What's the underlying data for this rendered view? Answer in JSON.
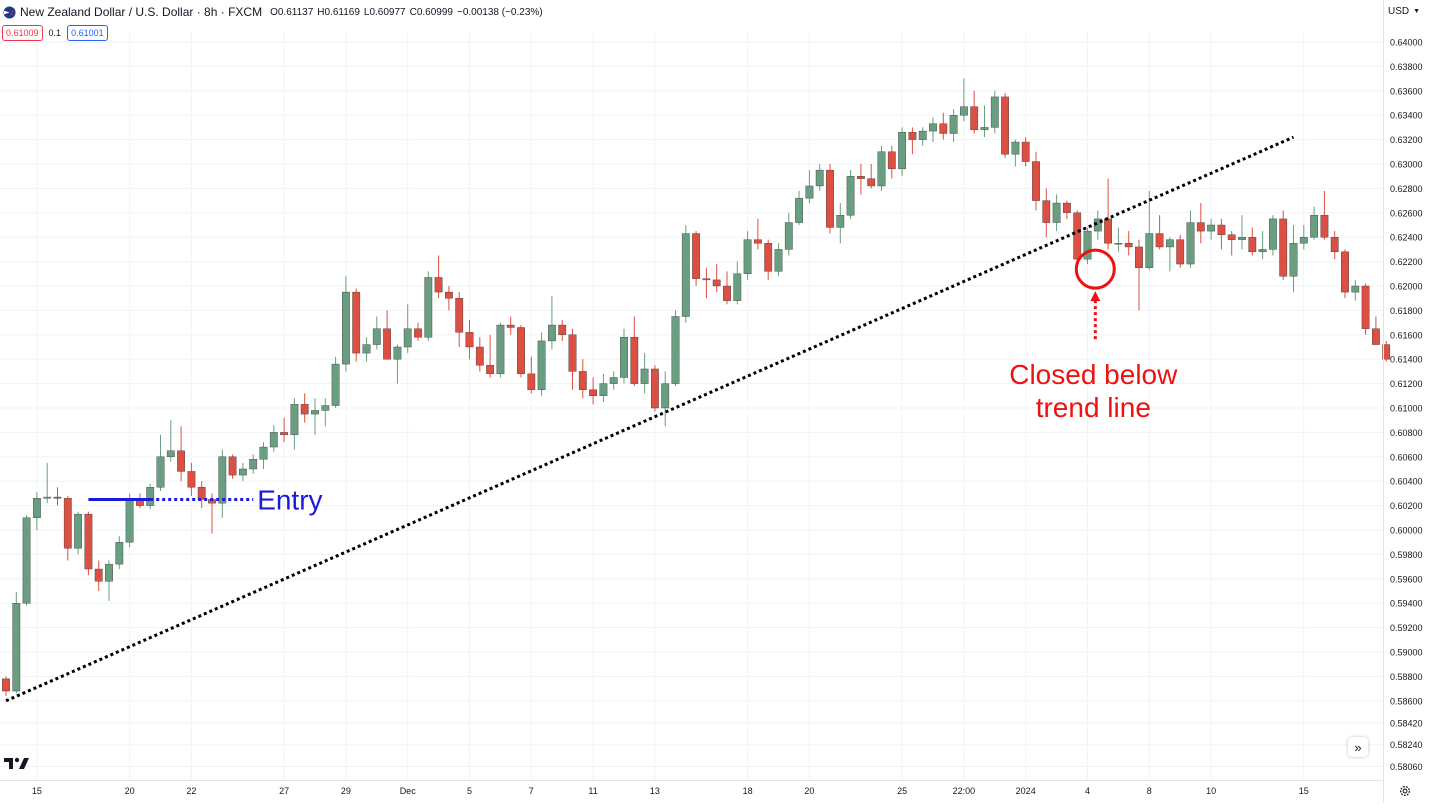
{
  "header": {
    "symbol": "New Zealand Dollar / U.S. Dollar · 8h · FXCM",
    "open": "O0.61137",
    "high": "H0.61169",
    "low": "L0.60977",
    "close": "C0.60999",
    "change": "−0.00138 (−0.23%)",
    "sell_price": "0.61009",
    "spread": "0.1",
    "buy_price": "0.61001",
    "currency": "USD"
  },
  "colors": {
    "up": "#6a9e80",
    "down": "#dc4f43",
    "trend_line": "#000000",
    "entry": "#1a1adc",
    "annotation": "#ee1111"
  },
  "icons": {
    "flag": "flag-icon",
    "currency_caret": "chevron-down-icon",
    "logo": "tradingview-logo-icon",
    "scroll": "double-chevron-right-icon",
    "settings": "gear-icon"
  },
  "annotations": {
    "entry_label": "Entry",
    "close_label_1": "Closed below",
    "close_label_2": "trend line"
  },
  "chart_data": {
    "type": "candlestick",
    "title": "New Zealand Dollar / U.S. Dollar · 8h · FXCM",
    "xlabel": "",
    "ylabel": "",
    "ylim": [
      0.5803,
      0.6422
    ],
    "grid": true,
    "y_ticks": [
      "0.64000",
      "0.63800",
      "0.63600",
      "0.63400",
      "0.63200",
      "0.63000",
      "0.62800",
      "0.62600",
      "0.62400",
      "0.62200",
      "0.62000",
      "0.61800",
      "0.61600",
      "0.61400",
      "0.61200",
      "0.61000",
      "0.60800",
      "0.60600",
      "0.60400",
      "0.60200",
      "0.60000",
      "0.59800",
      "0.59600",
      "0.59400",
      "0.59200",
      "0.59000",
      "0.58800",
      "0.58600",
      "0.58420",
      "0.58240",
      "0.58060"
    ],
    "x_ticks": [
      {
        "label": "15",
        "index": 3
      },
      {
        "label": "20",
        "index": 12
      },
      {
        "label": "22",
        "index": 18
      },
      {
        "label": "27",
        "index": 27
      },
      {
        "label": "29",
        "index": 33
      },
      {
        "label": "Dec",
        "index": 39
      },
      {
        "label": "5",
        "index": 45
      },
      {
        "label": "7",
        "index": 51
      },
      {
        "label": "11",
        "index": 57
      },
      {
        "label": "13",
        "index": 63
      },
      {
        "label": "18",
        "index": 72
      },
      {
        "label": "20",
        "index": 78
      },
      {
        "label": "25",
        "index": 87
      },
      {
        "label": "22:00",
        "index": 93
      },
      {
        "label": "2024",
        "index": 99
      },
      {
        "label": "4",
        "index": 105
      },
      {
        "label": "8",
        "index": 111
      },
      {
        "label": "10",
        "index": 117
      },
      {
        "label": "15",
        "index": 126
      }
    ],
    "candles": [
      [
        0.5878,
        0.588,
        0.5864,
        0.5868
      ],
      [
        0.5868,
        0.5949,
        0.5866,
        0.594
      ],
      [
        0.594,
        0.6012,
        0.5938,
        0.601
      ],
      [
        0.601,
        0.6031,
        0.6,
        0.6026
      ],
      [
        0.6026,
        0.6055,
        0.6022,
        0.6027
      ],
      [
        0.6027,
        0.6035,
        0.602,
        0.6026
      ],
      [
        0.6026,
        0.6028,
        0.5975,
        0.5985
      ],
      [
        0.5985,
        0.6015,
        0.598,
        0.6013
      ],
      [
        0.6013,
        0.6015,
        0.5963,
        0.5968
      ],
      [
        0.5968,
        0.5975,
        0.595,
        0.5958
      ],
      [
        0.5958,
        0.5975,
        0.5942,
        0.5972
      ],
      [
        0.5972,
        0.5995,
        0.5968,
        0.599
      ],
      [
        0.599,
        0.603,
        0.5986,
        0.6024
      ],
      [
        0.6024,
        0.603,
        0.6018,
        0.602
      ],
      [
        0.602,
        0.6038,
        0.6017,
        0.6035
      ],
      [
        0.6035,
        0.6078,
        0.6032,
        0.606
      ],
      [
        0.606,
        0.609,
        0.6056,
        0.6065
      ],
      [
        0.6065,
        0.6085,
        0.604,
        0.6048
      ],
      [
        0.6048,
        0.6055,
        0.6028,
        0.6035
      ],
      [
        0.6035,
        0.604,
        0.6018,
        0.6025
      ],
      [
        0.6025,
        0.603,
        0.5997,
        0.6022
      ],
      [
        0.6022,
        0.6066,
        0.601,
        0.606
      ],
      [
        0.606,
        0.6062,
        0.6042,
        0.6045
      ],
      [
        0.6045,
        0.6055,
        0.604,
        0.605
      ],
      [
        0.605,
        0.6062,
        0.6046,
        0.6058
      ],
      [
        0.6058,
        0.6072,
        0.605,
        0.6068
      ],
      [
        0.6068,
        0.6086,
        0.6064,
        0.608
      ],
      [
        0.608,
        0.6092,
        0.6072,
        0.6078
      ],
      [
        0.6078,
        0.6108,
        0.6066,
        0.6103
      ],
      [
        0.6103,
        0.6112,
        0.6088,
        0.6095
      ],
      [
        0.6095,
        0.6108,
        0.6078,
        0.6098
      ],
      [
        0.6098,
        0.6108,
        0.6085,
        0.6102
      ],
      [
        0.6102,
        0.6142,
        0.61,
        0.6136
      ],
      [
        0.6136,
        0.6208,
        0.613,
        0.6195
      ],
      [
        0.6195,
        0.6198,
        0.6138,
        0.6145
      ],
      [
        0.6145,
        0.6158,
        0.6138,
        0.6152
      ],
      [
        0.6152,
        0.6175,
        0.6148,
        0.6165
      ],
      [
        0.6165,
        0.618,
        0.614,
        0.614
      ],
      [
        0.614,
        0.6152,
        0.612,
        0.615
      ],
      [
        0.615,
        0.6185,
        0.6145,
        0.6165
      ],
      [
        0.6165,
        0.617,
        0.6155,
        0.6158
      ],
      [
        0.6158,
        0.6212,
        0.6155,
        0.6207
      ],
      [
        0.6207,
        0.6225,
        0.619,
        0.6195
      ],
      [
        0.6195,
        0.62,
        0.618,
        0.619
      ],
      [
        0.619,
        0.6195,
        0.615,
        0.6162
      ],
      [
        0.6162,
        0.6172,
        0.614,
        0.615
      ],
      [
        0.615,
        0.6158,
        0.613,
        0.6135
      ],
      [
        0.6135,
        0.616,
        0.6125,
        0.6128
      ],
      [
        0.6128,
        0.617,
        0.6125,
        0.6168
      ],
      [
        0.6168,
        0.6175,
        0.616,
        0.6166
      ],
      [
        0.6166,
        0.6168,
        0.6125,
        0.6128
      ],
      [
        0.6128,
        0.6142,
        0.6112,
        0.6115
      ],
      [
        0.6115,
        0.6162,
        0.611,
        0.6155
      ],
      [
        0.6155,
        0.6192,
        0.6148,
        0.6168
      ],
      [
        0.6168,
        0.6172,
        0.6155,
        0.616
      ],
      [
        0.616,
        0.6165,
        0.6115,
        0.613
      ],
      [
        0.613,
        0.614,
        0.6108,
        0.6115
      ],
      [
        0.6115,
        0.6125,
        0.6103,
        0.611
      ],
      [
        0.611,
        0.6128,
        0.6105,
        0.612
      ],
      [
        0.612,
        0.613,
        0.6115,
        0.6125
      ],
      [
        0.6125,
        0.6165,
        0.612,
        0.6158
      ],
      [
        0.6158,
        0.6175,
        0.6118,
        0.612
      ],
      [
        0.612,
        0.6145,
        0.6112,
        0.6132
      ],
      [
        0.6132,
        0.6135,
        0.6097,
        0.61
      ],
      [
        0.61,
        0.613,
        0.6085,
        0.612
      ],
      [
        0.612,
        0.618,
        0.6118,
        0.6175
      ],
      [
        0.6175,
        0.625,
        0.617,
        0.6243
      ],
      [
        0.6243,
        0.6245,
        0.62,
        0.6206
      ],
      [
        0.6206,
        0.6215,
        0.619,
        0.6205
      ],
      [
        0.6205,
        0.6218,
        0.6195,
        0.62
      ],
      [
        0.62,
        0.6212,
        0.6185,
        0.6188
      ],
      [
        0.6188,
        0.622,
        0.6185,
        0.621
      ],
      [
        0.621,
        0.6245,
        0.6205,
        0.6238
      ],
      [
        0.6238,
        0.6255,
        0.623,
        0.6235
      ],
      [
        0.6235,
        0.6238,
        0.6205,
        0.6212
      ],
      [
        0.6212,
        0.6235,
        0.6208,
        0.623
      ],
      [
        0.623,
        0.626,
        0.6225,
        0.6252
      ],
      [
        0.6252,
        0.6278,
        0.625,
        0.6272
      ],
      [
        0.6272,
        0.6295,
        0.6268,
        0.6282
      ],
      [
        0.6282,
        0.63,
        0.6278,
        0.6295
      ],
      [
        0.6295,
        0.63,
        0.6243,
        0.6248
      ],
      [
        0.6248,
        0.6268,
        0.6235,
        0.6258
      ],
      [
        0.6258,
        0.6295,
        0.6255,
        0.629
      ],
      [
        0.629,
        0.63,
        0.6275,
        0.6288
      ],
      [
        0.6288,
        0.63,
        0.628,
        0.6282
      ],
      [
        0.6282,
        0.6315,
        0.6278,
        0.631
      ],
      [
        0.631,
        0.6315,
        0.6288,
        0.6296
      ],
      [
        0.6296,
        0.633,
        0.629,
        0.6326
      ],
      [
        0.6326,
        0.633,
        0.6308,
        0.632
      ],
      [
        0.632,
        0.633,
        0.6315,
        0.6327
      ],
      [
        0.6327,
        0.6338,
        0.6318,
        0.6333
      ],
      [
        0.6333,
        0.6342,
        0.632,
        0.6325
      ],
      [
        0.6325,
        0.6345,
        0.6318,
        0.634
      ],
      [
        0.634,
        0.637,
        0.6335,
        0.6347
      ],
      [
        0.6347,
        0.636,
        0.6325,
        0.6328
      ],
      [
        0.6328,
        0.6348,
        0.6322,
        0.633
      ],
      [
        0.633,
        0.636,
        0.6325,
        0.6355
      ],
      [
        0.6355,
        0.6358,
        0.6305,
        0.6308
      ],
      [
        0.6308,
        0.632,
        0.6298,
        0.6318
      ],
      [
        0.6318,
        0.6322,
        0.6298,
        0.6302
      ],
      [
        0.6302,
        0.631,
        0.6262,
        0.627
      ],
      [
        0.627,
        0.628,
        0.624,
        0.6252
      ],
      [
        0.6252,
        0.6275,
        0.6245,
        0.6268
      ],
      [
        0.6268,
        0.627,
        0.6255,
        0.626
      ],
      [
        0.626,
        0.6262,
        0.622,
        0.6222
      ],
      [
        0.6222,
        0.6248,
        0.6218,
        0.6245
      ],
      [
        0.6245,
        0.6262,
        0.6238,
        0.6255
      ],
      [
        0.6255,
        0.6288,
        0.623,
        0.6235
      ],
      [
        0.6235,
        0.6248,
        0.6228,
        0.6235
      ],
      [
        0.6235,
        0.6245,
        0.6225,
        0.6232
      ],
      [
        0.6232,
        0.6238,
        0.618,
        0.6215
      ],
      [
        0.6215,
        0.6278,
        0.6213,
        0.6243
      ],
      [
        0.6243,
        0.6258,
        0.623,
        0.6232
      ],
      [
        0.6232,
        0.624,
        0.6212,
        0.6238
      ],
      [
        0.6238,
        0.6242,
        0.6215,
        0.6218
      ],
      [
        0.6218,
        0.6262,
        0.6215,
        0.6252
      ],
      [
        0.6252,
        0.6268,
        0.6235,
        0.6245
      ],
      [
        0.6245,
        0.6255,
        0.6238,
        0.625
      ],
      [
        0.625,
        0.6255,
        0.623,
        0.6242
      ],
      [
        0.6242,
        0.6245,
        0.6225,
        0.6238
      ],
      [
        0.6238,
        0.6258,
        0.623,
        0.624
      ],
      [
        0.624,
        0.6248,
        0.6225,
        0.6228
      ],
      [
        0.6228,
        0.6245,
        0.6222,
        0.623
      ],
      [
        0.623,
        0.6258,
        0.6225,
        0.6255
      ],
      [
        0.6255,
        0.6262,
        0.6205,
        0.6208
      ],
      [
        0.6208,
        0.625,
        0.6195,
        0.6235
      ],
      [
        0.6235,
        0.625,
        0.623,
        0.624
      ],
      [
        0.624,
        0.6265,
        0.6238,
        0.6258
      ],
      [
        0.6258,
        0.6278,
        0.6238,
        0.624
      ],
      [
        0.624,
        0.6245,
        0.6222,
        0.6228
      ],
      [
        0.6228,
        0.623,
        0.619,
        0.6195
      ],
      [
        0.6195,
        0.6205,
        0.6188,
        0.62
      ],
      [
        0.62,
        0.6202,
        0.616,
        0.6165
      ],
      [
        0.6165,
        0.6175,
        0.6152,
        0.6152
      ],
      [
        0.6152,
        0.6155,
        0.6138,
        0.614
      ]
    ],
    "trend_line": {
      "from": {
        "index": 0,
        "price": 0.586
      },
      "to": {
        "index": 125,
        "price": 0.6322
      }
    },
    "entry": {
      "price": 0.6025,
      "from_index": 8,
      "solid_to_index": 14,
      "dotted_to_index": 24
    },
    "close_marker": {
      "index": 106,
      "price": 0.6222
    }
  }
}
